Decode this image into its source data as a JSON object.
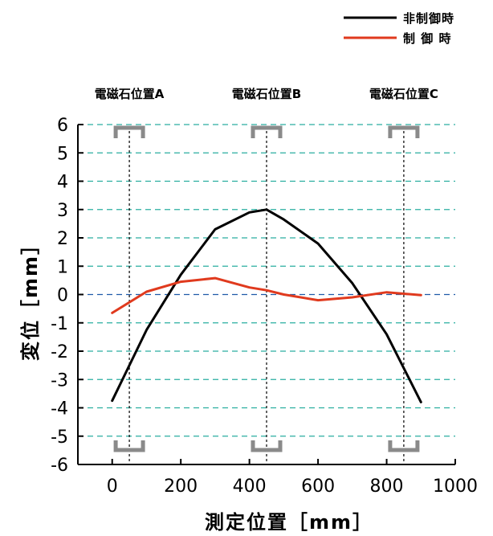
{
  "chart_data": {
    "type": "line",
    "xlabel": "測定位置［mm］",
    "ylabel": "変位［mm］",
    "xlim": [
      -100,
      1000
    ],
    "ylim": [
      -6,
      6
    ],
    "xticks": [
      "0",
      "200",
      "400",
      "600",
      "800",
      "1000"
    ],
    "yticks": [
      "-6",
      "-5",
      "-4",
      "-3",
      "-2",
      "-1",
      "0",
      "1",
      "2",
      "3",
      "4",
      "5",
      "6"
    ],
    "grid": true,
    "legend_position": "top-right",
    "series": [
      {
        "name": "非制御時",
        "color": "#000000",
        "x": [
          0,
          100,
          200,
          300,
          400,
          450,
          500,
          600,
          700,
          800,
          900
        ],
        "y": [
          -3.75,
          -1.25,
          0.7,
          2.3,
          2.9,
          3.0,
          2.65,
          1.8,
          0.4,
          -1.4,
          -3.8
        ]
      },
      {
        "name": "制 御 時",
        "color": "#e03a1e",
        "x": [
          0,
          100,
          200,
          300,
          400,
          450,
          500,
          600,
          700,
          800,
          900
        ],
        "y": [
          -0.65,
          0.1,
          0.45,
          0.58,
          0.25,
          0.15,
          0.0,
          -0.2,
          -0.1,
          0.08,
          -0.02
        ]
      }
    ],
    "markers": [
      {
        "label": "電磁石位置A",
        "x": 50
      },
      {
        "label": "電磁石位置B",
        "x": 450
      },
      {
        "label": "電磁石位置C",
        "x": 850
      }
    ],
    "bracket_color": "#8a8a8a",
    "grid_color": "#2aaea0",
    "zero_line_color": "#1f5aa8"
  }
}
